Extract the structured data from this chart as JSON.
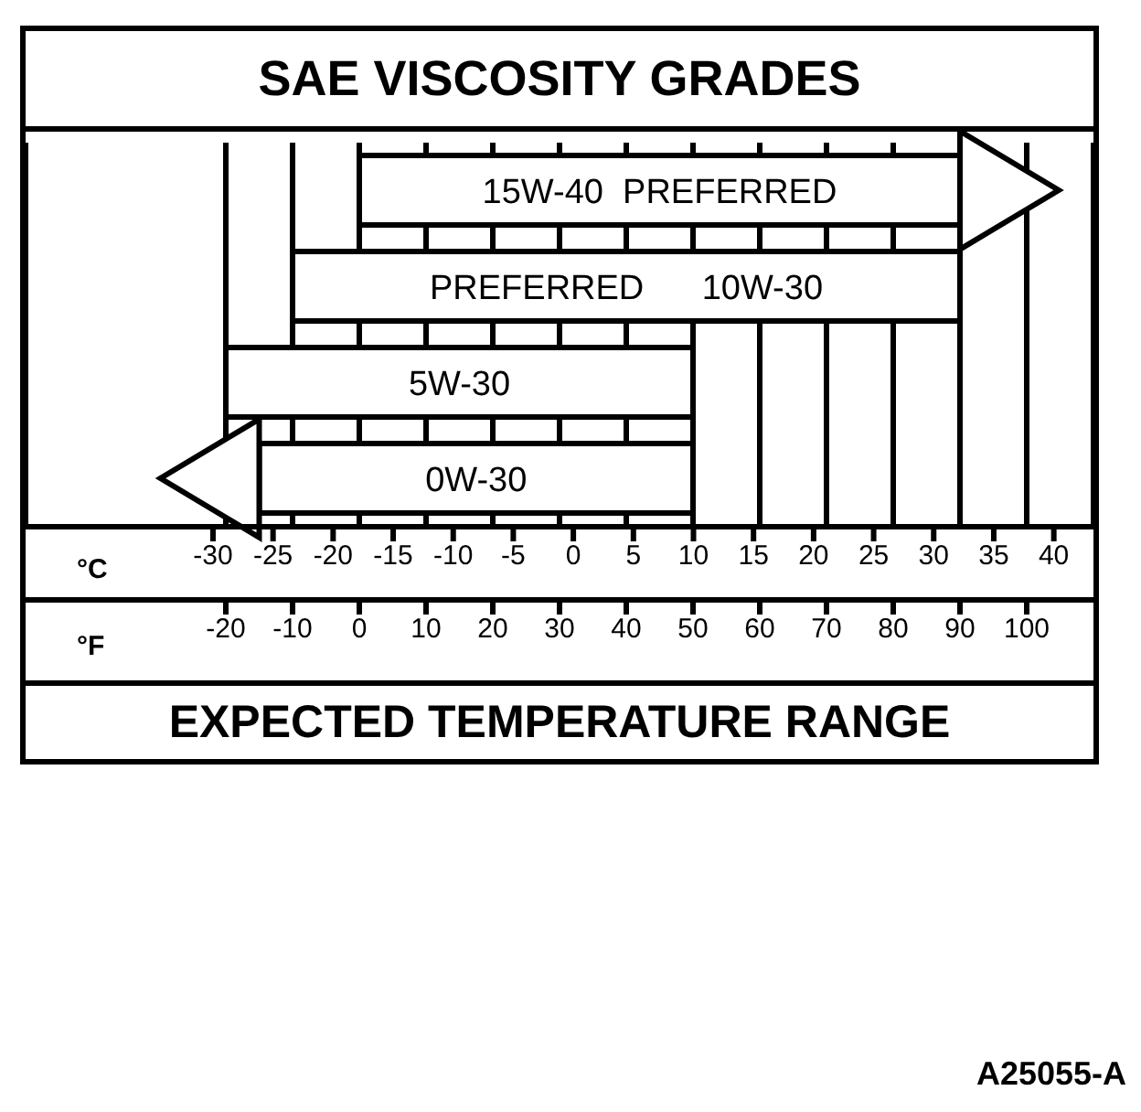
{
  "chart_data": {
    "type": "bar",
    "orientation": "horizontal",
    "title": "SAE VISCOSITY GRADES",
    "categories": [
      "15W-40  PREFERRED",
      "PREFERRED      10W-30",
      "5W-30",
      "0W-30"
    ],
    "base": [
      0,
      -10,
      -20,
      -15
    ],
    "values": [
      90,
      100,
      70,
      65
    ],
    "color": "#ffffff",
    "xlim": [
      -50,
      110
    ],
    "xticks": [
      -20,
      -10,
      0,
      10,
      20,
      30,
      40,
      50,
      60,
      70,
      80,
      90,
      100
    ],
    "x2lim": [
      -45.6,
      43.3
    ],
    "x2ticks": [
      -30,
      -25,
      -20,
      -15,
      -10,
      -5,
      0,
      5,
      10,
      15,
      20,
      25,
      30,
      35,
      40
    ],
    "xlabel": "°F",
    "x2label": "°C",
    "grid": "x",
    "annotations": [
      "EXPECTED TEMPERATURE RANGE",
      "A25055-A"
    ]
  }
}
